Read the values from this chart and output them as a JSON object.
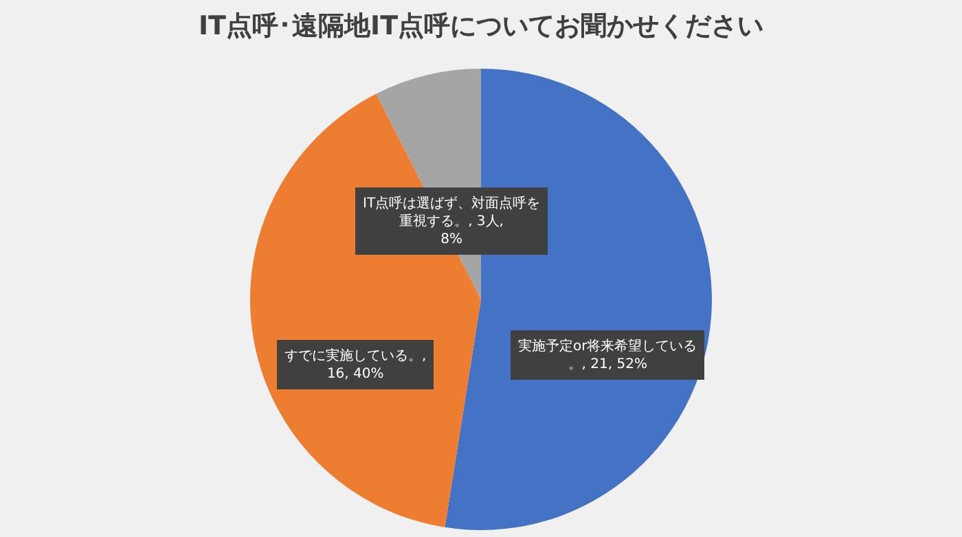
{
  "chart_data": {
    "type": "pie",
    "title": "IT点呼･遠隔地IT点呼についてお聞かせください",
    "categories": [
      "実施予定or将来希望している。",
      "すでに実施している。",
      "IT点呼は選ばず、対面点呼を重視する。"
    ],
    "values": [
      21,
      16,
      3
    ],
    "colors": [
      "#4472c4",
      "#ed7d31",
      "#a5a5a5"
    ],
    "value_labels": [
      ", 21, 52%",
      ", 16, 40%",
      ", 3人, 8%"
    ],
    "legend": false
  }
}
